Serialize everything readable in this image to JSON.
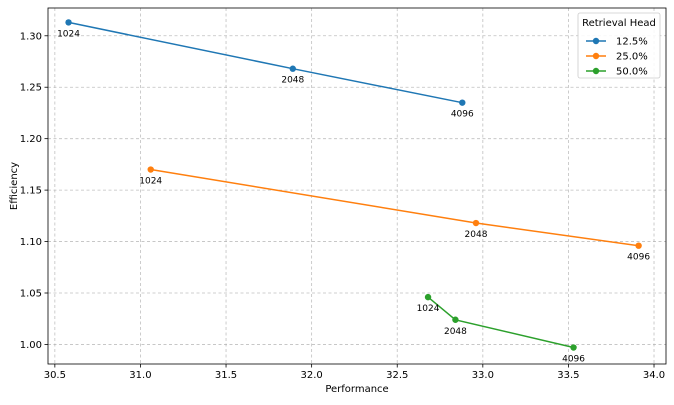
{
  "chart_data": {
    "type": "line",
    "xlabel": "Performance",
    "ylabel": "Efficiency",
    "xlim": [
      30.46,
      34.07
    ],
    "ylim": [
      0.981,
      1.327
    ],
    "xticks": [
      "30.5",
      "31.0",
      "31.5",
      "32.0",
      "32.5",
      "33.0",
      "33.5",
      "34.0"
    ],
    "xtick_values": [
      30.5,
      31.0,
      31.5,
      32.0,
      32.5,
      33.0,
      33.5,
      34.0
    ],
    "yticks": [
      "1.00",
      "1.05",
      "1.10",
      "1.15",
      "1.20",
      "1.25",
      "1.30"
    ],
    "ytick_values": [
      1.0,
      1.05,
      1.1,
      1.15,
      1.2,
      1.25,
      1.3
    ],
    "grid": true,
    "legend": {
      "title": "Retrieval Head",
      "position": "top-right"
    },
    "series": [
      {
        "name": "12.5%",
        "color": "#1f77b4",
        "points": [
          {
            "x": 30.58,
            "y": 1.313,
            "label": "1024"
          },
          {
            "x": 31.89,
            "y": 1.268,
            "label": "2048"
          },
          {
            "x": 32.88,
            "y": 1.235,
            "label": "4096"
          }
        ]
      },
      {
        "name": "25.0%",
        "color": "#ff7f0e",
        "points": [
          {
            "x": 31.06,
            "y": 1.17,
            "label": "1024"
          },
          {
            "x": 32.96,
            "y": 1.118,
            "label": "2048"
          },
          {
            "x": 33.91,
            "y": 1.096,
            "label": "4096"
          }
        ]
      },
      {
        "name": "50.0%",
        "color": "#2ca02c",
        "points": [
          {
            "x": 32.68,
            "y": 1.046,
            "label": "1024"
          },
          {
            "x": 32.84,
            "y": 1.024,
            "label": "2048"
          },
          {
            "x": 33.53,
            "y": 0.997,
            "label": "4096"
          }
        ]
      }
    ]
  }
}
